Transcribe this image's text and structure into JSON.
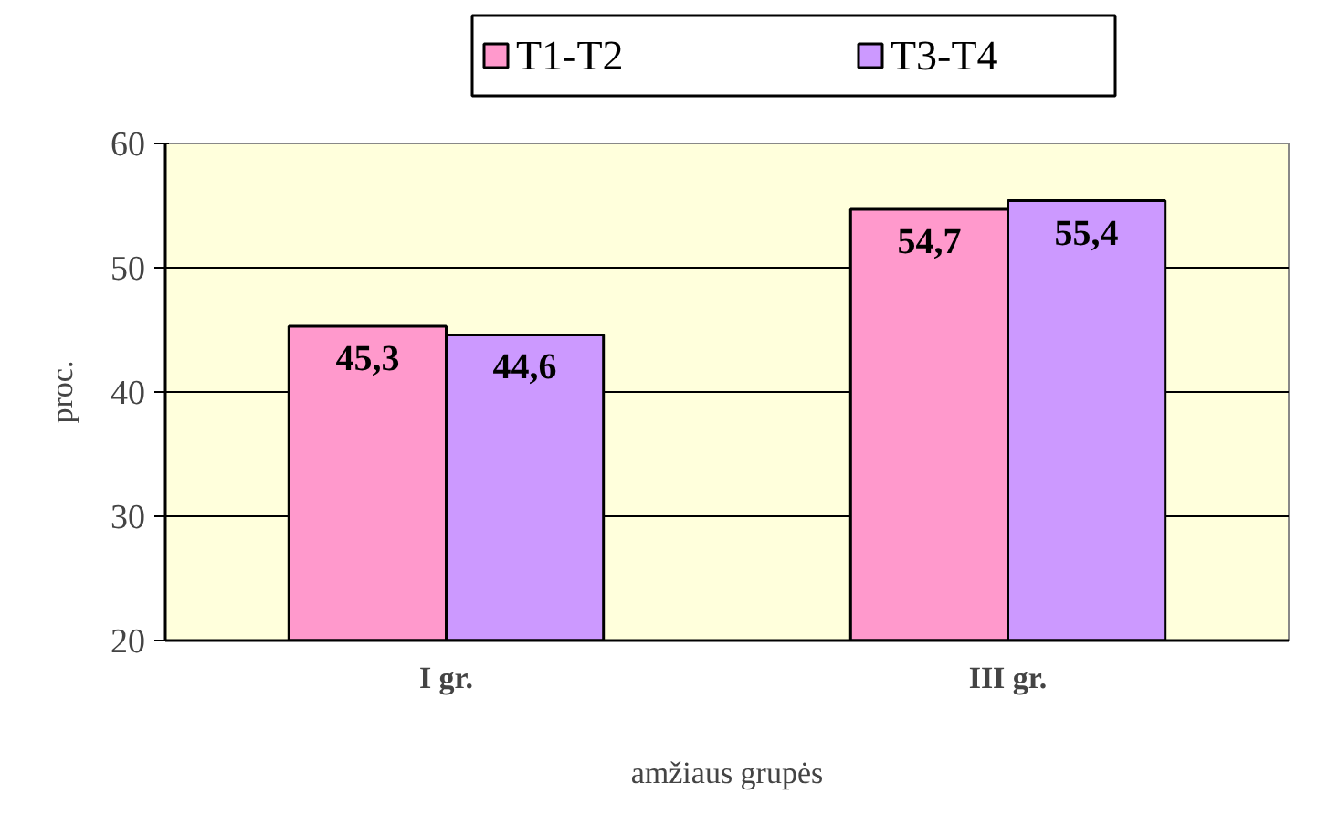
{
  "chart_data": {
    "type": "bar",
    "categories": [
      "I gr.",
      "III gr."
    ],
    "series": [
      {
        "name": "T1-T2",
        "color": "#ff99cc",
        "values": [
          45.3,
          54.7
        ],
        "value_labels": [
          "45,3",
          "54,7"
        ]
      },
      {
        "name": "T3-T4",
        "color": "#cc99ff",
        "values": [
          44.6,
          55.4
        ],
        "value_labels": [
          "44,6",
          "55,4"
        ]
      }
    ],
    "xlabel": "amžiaus grupės",
    "ylabel": "proc.",
    "ylim": [
      20,
      60
    ],
    "yticks": [
      20,
      30,
      40,
      50,
      60
    ],
    "grid": "y",
    "legend": "top"
  }
}
